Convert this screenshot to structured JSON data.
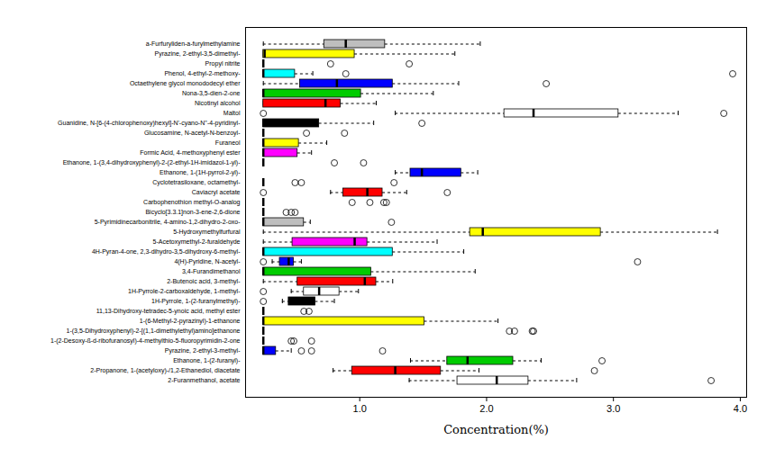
{
  "chart_data": {
    "type": "box",
    "orientation": "horizontal",
    "x_label": "Concentration(%)",
    "xlim": [
      0.1,
      4.05
    ],
    "xticks": [
      1,
      2,
      3,
      4
    ],
    "grid": false,
    "categories": [
      "a-Furfuryliden-a-furylmethylamine",
      "Pyrazine, 2-ethyl-3,5-dimethyl-",
      "Propyl nitrite",
      "Phenol, 4-ethyl-2-methoxy-",
      "Octaethylene glycol monododecyl ether",
      "Nona-3,5-dien-2-one",
      "Nicotinyl alcohol",
      "Maltol",
      "Guanidine, N-[6-(4-chlorophenoxy)hexyl]-N'-cyano-N''-4-pyridinyl-",
      "Glucosamine, N-acetyl-N-benzoyl-",
      "Furaneol",
      "Formic Acid, 4-methoxyphenyl ester",
      "Ethanone, 1-(3,4-dihydroxyphenyl)-2-(2-ethyl-1H-imidazol-1-yl)-",
      "Ethanone, 1-(1H-pyrrol-2-yl)-",
      "Cyclotetrasiloxane, octamethyl-",
      "Caviacryl acetate",
      "Carbophenothion methyl-O-analog",
      "Bicyclo[3.3.1]non-3-ene-2,6-dione",
      "5-Pyrimidinecarbonitrile, 4-amino-1,2-dihydro-2-oxo-",
      "5-Hydroxymethylfurfural",
      "5-Acetoxymethyl-2-furaldehyde",
      "4H-Pyran-4-one, 2,3-dihydro-3,5-dihydroxy-6-methyl-",
      "4(H)-Pyridine, N-acetyl-",
      "3,4-Furandimethanol",
      "2-Butenoic acid, 3-methyl-",
      "1H-Pyrrole-2-carboxaldehyde, 1-methyl-",
      "1H-Pyrrole, 1-(2-furanylmethyl)-",
      "11,13-Dihydroxy-tetradec-5-ynoic acid, methyl ester",
      "1-(6-Methyl-2-pyrazinyl)-1-ethanone",
      "1-(3,5-Dihydroxyphenyl)-2-[(1,1-dimethylethyl)amino]ethanone",
      "1-(2-Desoxy-ß-d-ribofuranosyl)-4-methylthio-5-fluoropyrimidin-2-one",
      "Pyrazine, 2-ethyl-3-methyl-",
      "Ethanone, 1-(2-furanyl)-",
      "2-Propanone, 1-(acetyloxy)-/1,2-Ethanediol, diacetate",
      "2-Furanmethanol, acetate"
    ],
    "colors": [
      "#bebebe",
      "#ffff00",
      "#ff00ff",
      "#00ffff",
      "#0000ff",
      "#00cc00",
      "#ff0000",
      "#ffffff",
      "#000000",
      "#bebebe",
      "#ffff00",
      "#ff00ff",
      "#00ffff",
      "#0000ff",
      "#00cc00",
      "#ff0000",
      "#ffffff",
      "#000000",
      "#bebebe",
      "#ffff00",
      "#ff00ff",
      "#00ffff",
      "#0000ff",
      "#00cc00",
      "#ff0000",
      "#ffffff",
      "#000000",
      "#bebebe",
      "#ffff00",
      "#ff00ff",
      "#00ffff",
      "#0000ff",
      "#00cc00",
      "#ff0000",
      "#ffffff"
    ],
    "min": [
      0.24,
      0.24,
      0.24,
      0.24,
      0.24,
      0.24,
      0.24,
      1.28,
      0.24,
      0.24,
      0.24,
      0.24,
      0.24,
      1.28,
      0.24,
      0.77,
      0.24,
      0.24,
      0.24,
      0.24,
      0.24,
      0.24,
      0.31,
      0.24,
      0.24,
      0.46,
      0.39,
      0.24,
      0.24,
      0.24,
      0.24,
      0.24,
      1.4,
      0.79,
      1.39
    ],
    "q1": [
      0.72,
      0.24,
      0.24,
      0.24,
      0.53,
      0.24,
      0.24,
      2.14,
      0.24,
      0.24,
      0.24,
      0.24,
      0.24,
      1.4,
      0.24,
      0.87,
      0.24,
      0.24,
      0.24,
      1.87,
      0.47,
      0.24,
      0.37,
      0.24,
      0.51,
      0.56,
      0.44,
      0.24,
      0.24,
      0.24,
      0.24,
      0.24,
      1.69,
      0.94,
      1.77
    ],
    "median": [
      0.89,
      0.25,
      0.24,
      0.24,
      0.82,
      0.24,
      0.73,
      2.37,
      0.24,
      0.24,
      0.24,
      0.24,
      0.24,
      1.49,
      0.24,
      1.06,
      0.24,
      0.24,
      0.24,
      1.97,
      0.96,
      0.24,
      0.44,
      0.24,
      1.04,
      0.68,
      0.56,
      0.24,
      0.24,
      0.24,
      0.24,
      0.24,
      1.85,
      1.28,
      2.08
    ],
    "q3": [
      1.2,
      0.96,
      0.24,
      0.49,
      1.26,
      1.01,
      0.85,
      3.04,
      0.68,
      0.24,
      0.52,
      0.51,
      0.24,
      1.8,
      0.24,
      1.18,
      0.24,
      0.24,
      0.56,
      2.9,
      1.06,
      1.26,
      0.48,
      1.09,
      1.13,
      0.84,
      0.65,
      0.24,
      1.51,
      0.24,
      0.24,
      0.34,
      2.21,
      1.64,
      2.33
    ],
    "max": [
      1.95,
      1.75,
      0.24,
      0.63,
      1.78,
      1.58,
      1.13,
      3.51,
      1.11,
      0.24,
      0.74,
      0.62,
      0.24,
      1.93,
      0.24,
      1.37,
      0.24,
      0.24,
      0.61,
      3.82,
      1.61,
      1.82,
      0.54,
      1.91,
      1.26,
      0.99,
      0.8,
      0.24,
      2.09,
      0.24,
      0.24,
      0.46,
      2.43,
      1.94,
      2.71
    ],
    "outliers": [
      [],
      [],
      [
        0.77,
        1.39
      ],
      [
        0.89,
        3.94
      ],
      [
        2.47
      ],
      [],
      [],
      [
        0.24,
        3.87
      ],
      [
        1.49
      ],
      [
        0.58,
        0.88
      ],
      [],
      [],
      [
        0.8,
        1.03
      ],
      [],
      [
        0.49,
        0.54,
        1.27
      ],
      [
        0.24,
        1.69
      ],
      [
        0.94,
        1.08,
        1.19,
        1.21
      ],
      [
        0.42,
        0.46,
        0.49
      ],
      [
        1.25
      ],
      [],
      [],
      [],
      [
        0.24,
        3.19
      ],
      [],
      [],
      [
        0.24
      ],
      [
        0.24
      ],
      [
        0.56,
        0.6
      ],
      [],
      [
        2.18,
        2.22,
        2.36,
        2.37
      ],
      [
        0.46,
        0.48,
        0.62
      ],
      [
        0.54,
        0.62,
        1.18
      ],
      [
        2.91
      ],
      [
        2.85
      ],
      [
        3.77
      ]
    ]
  }
}
